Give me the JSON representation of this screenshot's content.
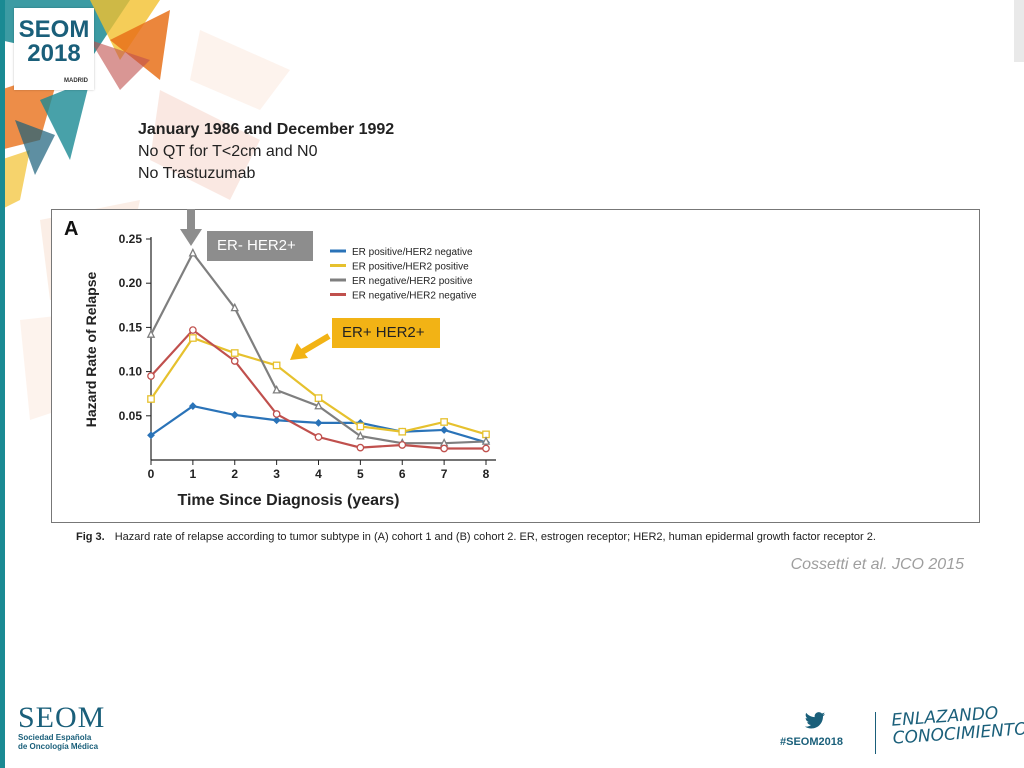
{
  "branding": {
    "logo_title": "SEOM",
    "logo_year": "2018",
    "logo_city": "MADRID",
    "footer_org": "SEOM",
    "footer_subtitle_1": "Sociedad Española",
    "footer_subtitle_2": "de Oncología Médica",
    "hashtag": "#SEOM2018",
    "slogan_1": "ENLAZANDO",
    "slogan_2": "CONOCIMIENTO",
    "colors": {
      "teal": "#1a8a93",
      "navy": "#1a5f7a",
      "orange": "#e8711a"
    }
  },
  "notes": {
    "line1": "January 1986 and December 1992",
    "line2": "No QT for T<2cm and N0",
    "line3": "No Trastuzumab"
  },
  "callouts": {
    "grey_label": "ER- HER2+",
    "yellow_label": "ER+ HER2+",
    "grey_color": "#8d8d8d",
    "yellow_color": "#f2b315"
  },
  "figure": {
    "panel_letter": "A",
    "caption_label": "Fig 3.",
    "caption_text": "Hazard rate of relapse according to tumor subtype in (A) cohort 1 and (B) cohort 2. ER, estrogen receptor; HER2, human epidermal growth factor receptor 2.",
    "citation": "Cossetti et al. JCO 2015"
  },
  "chart_data": {
    "type": "line",
    "title": "",
    "xlabel": "Time Since Diagnosis (years)",
    "ylabel": "Hazard Rate of Relapse",
    "x": [
      0,
      1,
      2,
      3,
      4,
      5,
      6,
      7,
      8
    ],
    "xlim": [
      0,
      8
    ],
    "ylim": [
      0,
      0.25
    ],
    "x_ticks": [
      "0",
      "1",
      "2",
      "3",
      "4",
      "5",
      "6",
      "7",
      "8"
    ],
    "y_ticks": [
      {
        "value": 0.05,
        "label": "0.05"
      },
      {
        "value": 0.1,
        "label": "0.10"
      },
      {
        "value": 0.15,
        "label": "0.15"
      },
      {
        "value": 0.2,
        "label": "0.20"
      },
      {
        "value": 0.25,
        "label": "0.25"
      }
    ],
    "legend_position": "top-right",
    "grid": false,
    "series": [
      {
        "name": "ER positive/HER2 negative",
        "color": "#2a73b8",
        "marker": "diamond",
        "values": [
          0.028,
          0.061,
          0.051,
          0.045,
          0.042,
          0.042,
          0.032,
          0.034,
          0.02
        ]
      },
      {
        "name": "ER positive/HER2 positive",
        "color": "#e6c12e",
        "marker": "square",
        "values": [
          0.069,
          0.138,
          0.121,
          0.107,
          0.07,
          0.038,
          0.032,
          0.043,
          0.029
        ]
      },
      {
        "name": "ER negative/HER2 positive",
        "color": "#7f7f7f",
        "marker": "triangle",
        "values": [
          0.142,
          0.234,
          0.172,
          0.079,
          0.061,
          0.027,
          0.019,
          0.019,
          0.021
        ]
      },
      {
        "name": "ER negative/HER2 negative",
        "color": "#c0504d",
        "marker": "circle",
        "values": [
          0.095,
          0.147,
          0.112,
          0.052,
          0.026,
          0.014,
          0.017,
          0.013,
          0.013
        ]
      }
    ]
  }
}
